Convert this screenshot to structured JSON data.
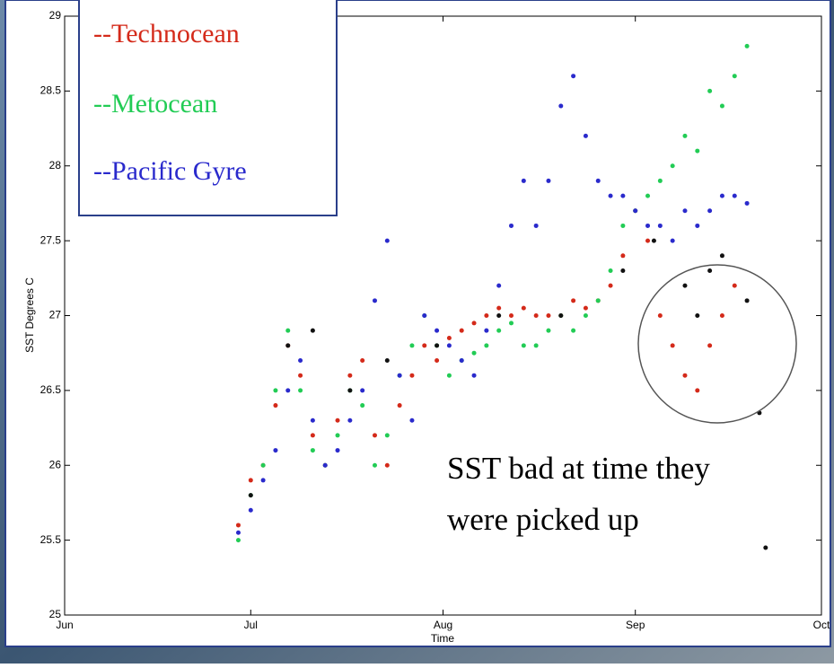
{
  "chart_data": {
    "type": "scatter",
    "xlabel": "Time",
    "ylabel": "SST Degrees C",
    "annotation": [
      "SST bad at time they",
      "were picked up"
    ],
    "xlim": [
      0,
      122
    ],
    "xticks": [
      {
        "value": 0,
        "label": "Jun"
      },
      {
        "value": 30,
        "label": "Jul"
      },
      {
        "value": 61,
        "label": "Aug"
      },
      {
        "value": 92,
        "label": "Sep"
      },
      {
        "value": 122,
        "label": "Oct"
      }
    ],
    "ylim": [
      25,
      29
    ],
    "yticks": [
      25,
      25.5,
      26,
      26.5,
      27,
      27.5,
      28,
      28.5,
      29
    ],
    "series": [
      {
        "name": "--Technocean",
        "color": "#d42a1a",
        "x": [
          28,
          30,
          32,
          34,
          36,
          38,
          40,
          42,
          44,
          46,
          48,
          50,
          52,
          54,
          56,
          58,
          60,
          62,
          64,
          66,
          68,
          70,
          72,
          74,
          76,
          78,
          80,
          82,
          84,
          86,
          88,
          90,
          92,
          94,
          96,
          98,
          100,
          102,
          104,
          106,
          108
        ],
        "values": [
          25.6,
          25.9,
          26.0,
          26.4,
          26.8,
          26.6,
          26.2,
          26.0,
          26.3,
          26.6,
          26.7,
          26.2,
          26.0,
          26.4,
          26.6,
          26.8,
          26.7,
          26.85,
          26.9,
          26.95,
          27.0,
          27.05,
          27.0,
          27.05,
          27.0,
          27.0,
          27.0,
          27.1,
          27.05,
          27.1,
          27.2,
          27.4,
          27.7,
          27.5,
          27.0,
          26.8,
          26.6,
          26.5,
          26.8,
          27.0,
          27.2
        ]
      },
      {
        "name": "--Metocean",
        "color": "#22cc55",
        "x": [
          28,
          30,
          32,
          34,
          36,
          38,
          40,
          42,
          44,
          46,
          48,
          50,
          52,
          54,
          56,
          58,
          60,
          62,
          64,
          66,
          68,
          70,
          72,
          74,
          76,
          78,
          80,
          82,
          84,
          86,
          88,
          90,
          92,
          94,
          96,
          98,
          100,
          102,
          104,
          106,
          108,
          110
        ],
        "values": [
          25.5,
          25.8,
          26.0,
          26.5,
          26.9,
          26.5,
          26.1,
          26.0,
          26.2,
          26.5,
          26.4,
          26.0,
          26.2,
          26.6,
          26.8,
          27.0,
          26.8,
          26.6,
          26.7,
          26.75,
          26.8,
          26.9,
          26.95,
          26.8,
          26.8,
          26.9,
          27.0,
          26.9,
          27.0,
          27.1,
          27.3,
          27.6,
          27.7,
          27.8,
          27.9,
          28.0,
          28.2,
          28.1,
          28.5,
          28.4,
          28.6,
          28.8
        ]
      },
      {
        "name": "--Pacific Gyre",
        "color": "#2a2acc",
        "x": [
          28,
          30,
          32,
          34,
          36,
          38,
          40,
          42,
          44,
          46,
          48,
          50,
          52,
          54,
          56,
          58,
          60,
          62,
          64,
          66,
          68,
          70,
          72,
          74,
          76,
          78,
          80,
          82,
          84,
          86,
          88,
          90,
          92,
          94,
          96,
          98,
          100,
          102,
          104,
          106,
          108,
          110
        ],
        "values": [
          25.55,
          25.7,
          25.9,
          26.1,
          26.5,
          26.7,
          26.3,
          26.0,
          26.1,
          26.3,
          26.5,
          27.1,
          27.5,
          26.6,
          26.3,
          27.0,
          26.9,
          26.8,
          26.7,
          26.6,
          26.9,
          27.2,
          27.6,
          27.9,
          27.6,
          27.9,
          28.4,
          28.6,
          28.2,
          27.9,
          27.8,
          27.8,
          27.7,
          27.6,
          27.6,
          27.5,
          27.7,
          27.6,
          27.7,
          27.8,
          27.8,
          27.75
        ]
      },
      {
        "color": "#111111",
        "x": [
          30,
          36,
          40,
          46,
          52,
          60,
          70,
          80,
          90,
          95,
          100,
          102,
          104,
          106,
          110,
          112,
          113
        ],
        "values": [
          25.8,
          26.8,
          26.9,
          26.5,
          26.7,
          26.8,
          27.0,
          27.0,
          27.3,
          27.5,
          27.2,
          27.0,
          27.3,
          27.4,
          27.1,
          26.35,
          25.45
        ]
      }
    ]
  }
}
